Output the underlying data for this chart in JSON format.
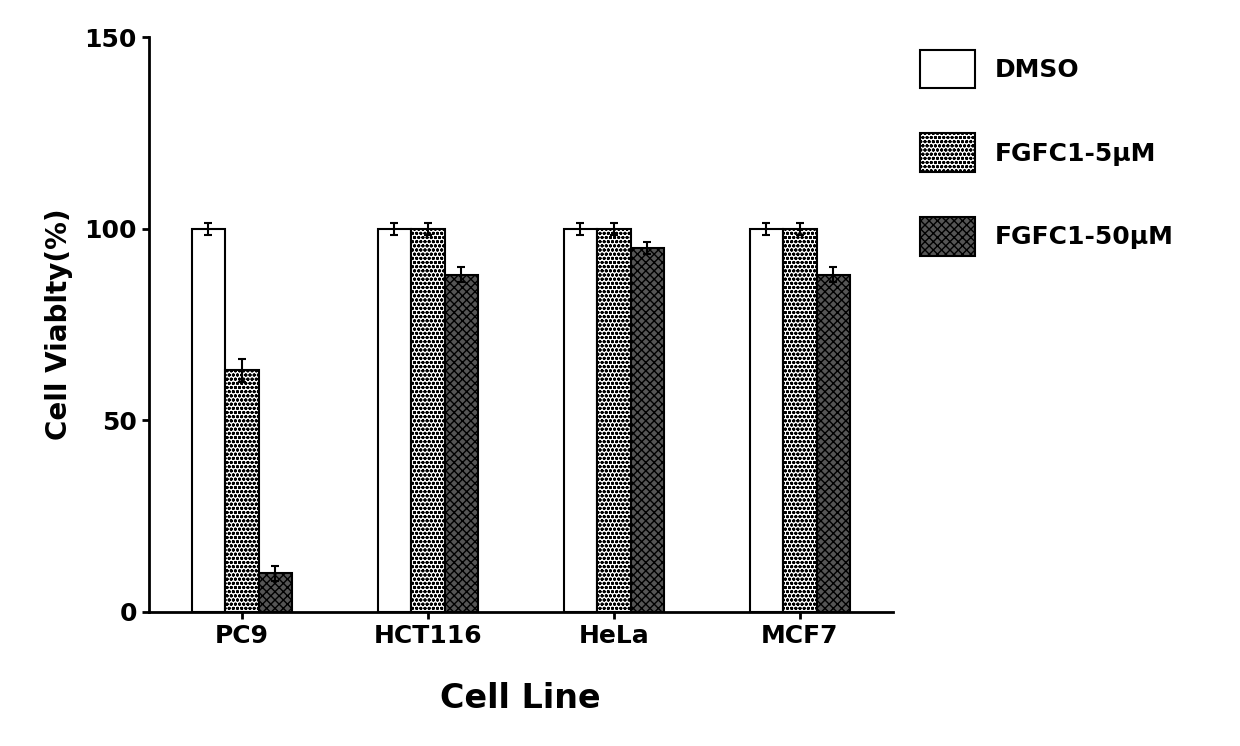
{
  "cell_lines": [
    "PC9",
    "HCT116",
    "HeLa",
    "MCF7"
  ],
  "series": [
    {
      "label": "DMSO",
      "values": [
        100,
        100,
        100,
        100
      ],
      "errors": [
        1.5,
        1.5,
        1.5,
        1.5
      ],
      "facecolor": "white",
      "edgecolor": "black",
      "hatch": ""
    },
    {
      "label": "FGFC1-5μM",
      "values": [
        63,
        100,
        100,
        100
      ],
      "errors": [
        3,
        1.5,
        1.5,
        1.5
      ],
      "facecolor": "white",
      "edgecolor": "black",
      "hatch": "oooo"
    },
    {
      "label": "FGFC1-50μM",
      "values": [
        10,
        88,
        95,
        88
      ],
      "errors": [
        2,
        2,
        1.5,
        2
      ],
      "facecolor": "#555555",
      "edgecolor": "black",
      "hatch": "xxxx"
    }
  ],
  "ylabel": "Cell Viablty(%)",
  "xlabel": "Cell Line",
  "ylim": [
    0,
    150
  ],
  "yticks": [
    0,
    50,
    100,
    150
  ],
  "bar_width": 0.18,
  "background_color": "white",
  "axis_fontsize": 20,
  "xlabel_fontsize": 24,
  "tick_fontsize": 18,
  "legend_fontsize": 18
}
